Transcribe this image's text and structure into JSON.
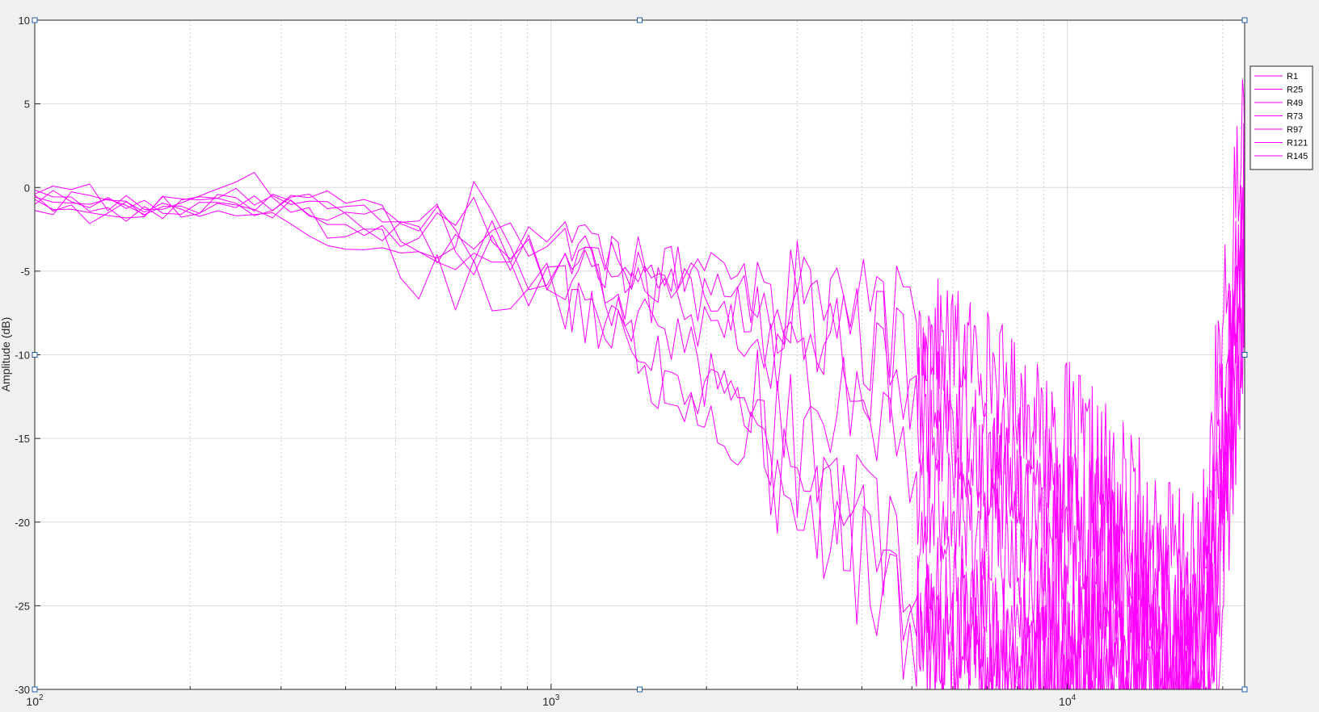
{
  "chart_data": {
    "type": "line",
    "title": "",
    "xlabel": "",
    "ylabel": "Amplitude (dB)",
    "xscale": "log",
    "xlim": [
      100,
      22050
    ],
    "ylim": [
      -30,
      10
    ],
    "yticks": [
      10,
      5,
      0,
      -5,
      -10,
      -15,
      -20,
      -25,
      -30
    ],
    "ytick_labels": [
      "10",
      "5",
      "0",
      "-5",
      "-10",
      "-15",
      "-20",
      "-25",
      "-30"
    ],
    "xticks": [
      100,
      1000,
      10000
    ],
    "xtick_labels": [
      {
        "base": "10",
        "exp": "2"
      },
      {
        "base": "10",
        "exp": "3"
      },
      {
        "base": "10",
        "exp": "4"
      }
    ],
    "grid": true,
    "legend_position": "top-right",
    "colors": {
      "series": "#ff00ff",
      "grid": "#dcdcdc",
      "axis": "#262626",
      "handle": "#1f5fa8"
    },
    "series": [
      {
        "name": "R1",
        "points": [
          [
            100,
            -0.6
          ],
          [
            130,
            -0.9
          ],
          [
            180,
            -1.1
          ],
          [
            260,
            -0.8
          ],
          [
            350,
            -1.7
          ],
          [
            450,
            -1.5
          ],
          [
            560,
            -2.0
          ],
          [
            700,
            -2.6
          ],
          [
            850,
            -3.4
          ],
          [
            1000,
            -2.1
          ],
          [
            1150,
            -3.0
          ],
          [
            1300,
            -4.2
          ],
          [
            1500,
            -3.5
          ],
          [
            1700,
            -5.0
          ],
          [
            1900,
            -4.3
          ],
          [
            2200,
            -5.5
          ],
          [
            2600,
            -6.0
          ],
          [
            3000,
            -6.6
          ],
          [
            3500,
            -7.2
          ],
          [
            4000,
            -7.6
          ],
          [
            4600,
            -8.1
          ],
          [
            5200,
            -8.5
          ],
          [
            6000,
            -9.3
          ],
          [
            7000,
            -10.5
          ],
          [
            8000,
            -12.5
          ],
          [
            9000,
            -14.5
          ],
          [
            10000,
            -15.8
          ],
          [
            12000,
            -18.2
          ],
          [
            14000,
            -20.5
          ],
          [
            16000,
            -22.5
          ],
          [
            18000,
            -24.0
          ],
          [
            19500,
            -12.0
          ],
          [
            20500,
            -7.0
          ],
          [
            21500,
            0.8
          ],
          [
            22050,
            5.0
          ]
        ],
        "noise": [
          0.8,
          1.8,
          3.5,
          5.5
        ]
      },
      {
        "name": "R25",
        "points": [
          [
            100,
            -0.9
          ],
          [
            130,
            -1.0
          ],
          [
            180,
            -0.9
          ],
          [
            260,
            -1.0
          ],
          [
            350,
            -1.2
          ],
          [
            450,
            -1.9
          ],
          [
            560,
            -2.8
          ],
          [
            700,
            -3.6
          ],
          [
            850,
            -2.6
          ],
          [
            1000,
            -2.8
          ],
          [
            1150,
            -3.8
          ],
          [
            1300,
            -4.8
          ],
          [
            1500,
            -5.2
          ],
          [
            1700,
            -6.0
          ],
          [
            1900,
            -5.2
          ],
          [
            2200,
            -6.6
          ],
          [
            2600,
            -7.4
          ],
          [
            3000,
            -7.8
          ],
          [
            3500,
            -8.4
          ],
          [
            4000,
            -9.0
          ],
          [
            4600,
            -10.3
          ],
          [
            5200,
            -11.5
          ],
          [
            6000,
            -13.5
          ],
          [
            7000,
            -15.5
          ],
          [
            8000,
            -17.0
          ],
          [
            9000,
            -18.6
          ],
          [
            10000,
            -19.8
          ],
          [
            12000,
            -22.0
          ],
          [
            14000,
            -24.5
          ],
          [
            16000,
            -26.5
          ],
          [
            18000,
            -28.0
          ],
          [
            19500,
            -18.0
          ],
          [
            20500,
            -10.0
          ],
          [
            21500,
            -4.0
          ],
          [
            22050,
            0.0
          ]
        ],
        "noise": [
          0.8,
          2.0,
          4.0,
          6.0
        ]
      },
      {
        "name": "R49",
        "points": [
          [
            100,
            -1.1
          ],
          [
            130,
            -1.2
          ],
          [
            180,
            -1.2
          ],
          [
            260,
            -0.7
          ],
          [
            350,
            -2.0
          ],
          [
            450,
            -2.4
          ],
          [
            560,
            -3.4
          ],
          [
            700,
            -2.2
          ],
          [
            850,
            -3.2
          ],
          [
            1000,
            -4.6
          ],
          [
            1150,
            -3.2
          ],
          [
            1300,
            -5.6
          ],
          [
            1500,
            -6.6
          ],
          [
            1700,
            -5.8
          ],
          [
            1900,
            -7.6
          ],
          [
            2200,
            -8.8
          ],
          [
            2600,
            -9.6
          ],
          [
            3000,
            -10.8
          ],
          [
            3500,
            -12.8
          ],
          [
            4000,
            -14.6
          ],
          [
            4600,
            -16.2
          ],
          [
            5200,
            -17.5
          ],
          [
            6000,
            -19.5
          ],
          [
            7000,
            -21.3
          ],
          [
            8000,
            -22.8
          ],
          [
            9000,
            -23.6
          ],
          [
            10000,
            -24.8
          ],
          [
            12000,
            -26.2
          ],
          [
            14000,
            -27.8
          ],
          [
            16000,
            -28.6
          ],
          [
            18000,
            -29.0
          ],
          [
            19500,
            -20.0
          ],
          [
            20500,
            -12.0
          ],
          [
            21500,
            -6.0
          ],
          [
            22050,
            -2.0
          ]
        ],
        "noise": [
          0.8,
          2.0,
          4.0,
          6.0
        ]
      },
      {
        "name": "R73",
        "points": [
          [
            100,
            -0.4
          ],
          [
            130,
            -0.6
          ],
          [
            180,
            -1.2
          ],
          [
            260,
            0.2
          ],
          [
            350,
            -2.2
          ],
          [
            450,
            -2.8
          ],
          [
            560,
            -1.5
          ],
          [
            700,
            -4.2
          ],
          [
            850,
            -3.8
          ],
          [
            1000,
            -4.0
          ],
          [
            1150,
            -5.2
          ],
          [
            1300,
            -6.0
          ],
          [
            1500,
            -7.8
          ],
          [
            1700,
            -8.8
          ],
          [
            1900,
            -10.8
          ],
          [
            2200,
            -12.8
          ],
          [
            2600,
            -14.5
          ],
          [
            3000,
            -15.8
          ],
          [
            3500,
            -17.8
          ],
          [
            4000,
            -19.8
          ],
          [
            4600,
            -21.8
          ],
          [
            5200,
            -23.3
          ],
          [
            6000,
            -24.8
          ],
          [
            7000,
            -26.2
          ],
          [
            8000,
            -27.3
          ],
          [
            9000,
            -28.0
          ],
          [
            10000,
            -28.6
          ],
          [
            12000,
            -29.2
          ],
          [
            14000,
            -29.6
          ],
          [
            16000,
            -29.8
          ],
          [
            18000,
            -29.9
          ],
          [
            19500,
            -22.0
          ],
          [
            20500,
            -14.0
          ],
          [
            21500,
            -8.0
          ],
          [
            22050,
            -4.0
          ]
        ],
        "noise": [
          0.9,
          2.2,
          4.5,
          6.0
        ]
      },
      {
        "name": "R97",
        "points": [
          [
            100,
            -1.2
          ],
          [
            130,
            -1.3
          ],
          [
            180,
            -1.4
          ],
          [
            260,
            -1.0
          ],
          [
            350,
            -3.2
          ],
          [
            450,
            -3.8
          ],
          [
            560,
            -4.2
          ],
          [
            700,
            -3.2
          ],
          [
            850,
            -5.8
          ],
          [
            1000,
            -6.2
          ],
          [
            1150,
            -6.8
          ],
          [
            1300,
            -7.8
          ],
          [
            1500,
            -10.2
          ],
          [
            1700,
            -12.8
          ],
          [
            1900,
            -14.0
          ],
          [
            2200,
            -14.8
          ],
          [
            2600,
            -16.0
          ],
          [
            3000,
            -17.8
          ],
          [
            3500,
            -20.5
          ],
          [
            4000,
            -22.5
          ],
          [
            4600,
            -24.5
          ],
          [
            5200,
            -26.5
          ],
          [
            6000,
            -27.8
          ],
          [
            7000,
            -28.5
          ],
          [
            8000,
            -29.2
          ],
          [
            9000,
            -29.5
          ],
          [
            10000,
            -29.7
          ],
          [
            12000,
            -29.8
          ],
          [
            14000,
            -29.9
          ],
          [
            16000,
            -29.9
          ],
          [
            18000,
            -29.9
          ],
          [
            19500,
            -24.0
          ],
          [
            20500,
            -16.0
          ],
          [
            21500,
            -9.0
          ],
          [
            22050,
            -5.0
          ]
        ],
        "noise": [
          0.9,
          2.2,
          4.5,
          6.0
        ]
      },
      {
        "name": "R121",
        "points": [
          [
            100,
            -0.7
          ],
          [
            130,
            -1.1
          ],
          [
            180,
            -1.0
          ],
          [
            260,
            -0.9
          ],
          [
            350,
            -0.5
          ],
          [
            450,
            -1.2
          ],
          [
            560,
            -4.2
          ],
          [
            700,
            -1.2
          ],
          [
            850,
            -5.5
          ],
          [
            1000,
            -5.0
          ],
          [
            1150,
            -3.5
          ],
          [
            1300,
            -5.2
          ],
          [
            1500,
            -6.2
          ],
          [
            1700,
            -4.5
          ],
          [
            1900,
            -7.0
          ],
          [
            2200,
            -6.2
          ],
          [
            2600,
            -8.2
          ],
          [
            3000,
            -7.2
          ],
          [
            3500,
            -9.2
          ],
          [
            4000,
            -10.2
          ],
          [
            4600,
            -12.8
          ],
          [
            5200,
            -14.2
          ],
          [
            6000,
            -15.8
          ],
          [
            7000,
            -17.2
          ],
          [
            8000,
            -18.8
          ],
          [
            9000,
            -20.2
          ],
          [
            10000,
            -21.2
          ],
          [
            12000,
            -23.2
          ],
          [
            14000,
            -25.0
          ],
          [
            16000,
            -26.5
          ],
          [
            18000,
            -27.5
          ],
          [
            19500,
            -20.0
          ],
          [
            20500,
            -12.0
          ],
          [
            21500,
            -6.0
          ],
          [
            22050,
            -2.0
          ]
        ],
        "noise": [
          0.8,
          2.0,
          4.0,
          6.0
        ]
      },
      {
        "name": "R145",
        "points": [
          [
            100,
            -1.0
          ],
          [
            130,
            -1.4
          ],
          [
            180,
            -1.5
          ],
          [
            260,
            -0.5
          ],
          [
            350,
            -0.6
          ],
          [
            450,
            -2.4
          ],
          [
            560,
            -6.8
          ],
          [
            700,
            -5.2
          ],
          [
            850,
            -7.2
          ],
          [
            1000,
            -5.8
          ],
          [
            1150,
            -7.2
          ],
          [
            1300,
            -8.2
          ],
          [
            1500,
            -9.8
          ],
          [
            1700,
            -11.8
          ],
          [
            1900,
            -12.2
          ],
          [
            2200,
            -13.0
          ],
          [
            2600,
            -14.5
          ],
          [
            3000,
            -16.2
          ],
          [
            3500,
            -18.5
          ],
          [
            4000,
            -20.8
          ],
          [
            4600,
            -23.0
          ],
          [
            5200,
            -24.8
          ],
          [
            6000,
            -26.5
          ],
          [
            7000,
            -27.8
          ],
          [
            8000,
            -28.8
          ],
          [
            9000,
            -29.2
          ],
          [
            10000,
            -29.6
          ],
          [
            12000,
            -29.8
          ],
          [
            14000,
            -29.9
          ],
          [
            16000,
            -29.9
          ],
          [
            18000,
            -29.9
          ],
          [
            19500,
            -26.0
          ],
          [
            20500,
            -18.0
          ],
          [
            21500,
            -10.0
          ],
          [
            22050,
            -6.0
          ]
        ],
        "noise": [
          0.9,
          2.4,
          5.0,
          6.0
        ]
      }
    ]
  }
}
